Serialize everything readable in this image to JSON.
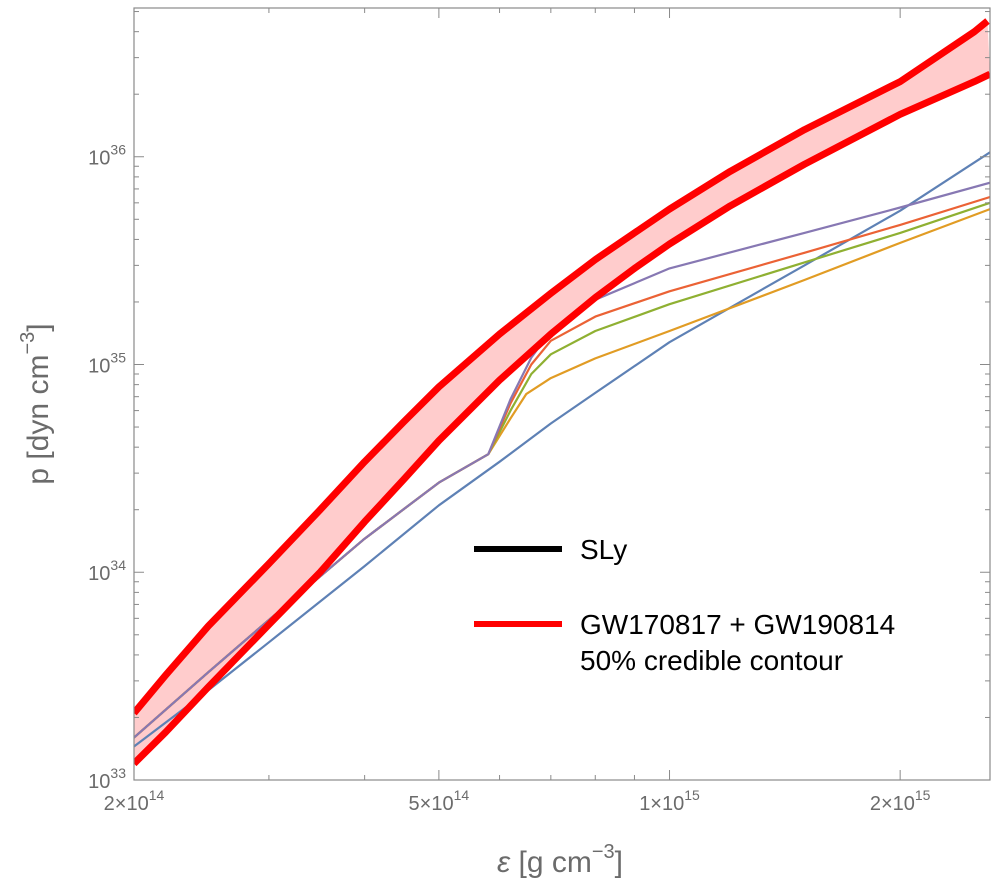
{
  "chart_data": {
    "type": "line",
    "title": "",
    "x_scale": "log",
    "y_scale": "log",
    "xlim": [
      200000000000000.0,
      2620000000000000.0
    ],
    "ylim": [
      1e+33,
      5.2e+36
    ],
    "xlabel": {
      "symbol": "ε",
      "text": " [g cm",
      "exp": "−3",
      "close": "]"
    },
    "ylabel": {
      "text": "p [dyn cm",
      "exp": "−3",
      "close": "]"
    },
    "x_ticks": [
      {
        "value": 200000000000000.0,
        "mant": "2×10",
        "exp": "14"
      },
      {
        "value": 500000000000000.0,
        "mant": "5×10",
        "exp": "14"
      },
      {
        "value": 1000000000000000.0,
        "mant": "1×10",
        "exp": "15"
      },
      {
        "value": 2000000000000000.0,
        "mant": "2×10",
        "exp": "15"
      }
    ],
    "y_ticks": [
      {
        "value": 1e+33,
        "mant": "10",
        "exp": "33"
      },
      {
        "value": 1e+34,
        "mant": "10",
        "exp": "34"
      },
      {
        "value": 1e+35,
        "mant": "10",
        "exp": "35"
      },
      {
        "value": 1e+36,
        "mant": "10",
        "exp": "36"
      }
    ],
    "band": {
      "label_line1": "GW170817 + GW190814",
      "label_line2": "50% credible contour",
      "color": "#ff0000",
      "fill": "#ffcccc",
      "upper": [
        [
          200000000000000.0,
          2.1e+33
        ],
        [
          220000000000000.0,
          3.2e+33
        ],
        [
          250000000000000.0,
          5.5e+33
        ],
        [
          300000000000000.0,
          1.1e+34
        ],
        [
          350000000000000.0,
          2e+34
        ],
        [
          400000000000000.0,
          3.4e+34
        ],
        [
          450000000000000.0,
          5.3e+34
        ],
        [
          500000000000000.0,
          7.8e+34
        ],
        [
          600000000000000.0,
          1.4e+35
        ],
        [
          700000000000000.0,
          2.2e+35
        ],
        [
          800000000000000.0,
          3.2e+35
        ],
        [
          900000000000000.0,
          4.3e+35
        ],
        [
          1000000000000000.0,
          5.6e+35
        ],
        [
          1200000000000000.0,
          8.5e+35
        ],
        [
          1500000000000000.0,
          1.35e+36
        ],
        [
          2000000000000000.0,
          2.3e+36
        ],
        [
          2500000000000000.0,
          4e+36
        ],
        [
          2600000000000000.0,
          4.5e+36
        ]
      ],
      "lower": [
        [
          200000000000000.0,
          1.2e+33
        ],
        [
          220000000000000.0,
          1.7e+33
        ],
        [
          250000000000000.0,
          2.8e+33
        ],
        [
          300000000000000.0,
          5.6e+33
        ],
        [
          350000000000000.0,
          1e+34
        ],
        [
          400000000000000.0,
          1.75e+34
        ],
        [
          450000000000000.0,
          2.8e+34
        ],
        [
          500000000000000.0,
          4.3e+34
        ],
        [
          600000000000000.0,
          8.4e+34
        ],
        [
          700000000000000.0,
          1.4e+35
        ],
        [
          800000000000000.0,
          2.1e+35
        ],
        [
          900000000000000.0,
          2.9e+35
        ],
        [
          1000000000000000.0,
          3.8e+35
        ],
        [
          1200000000000000.0,
          5.8e+35
        ],
        [
          1500000000000000.0,
          9.2e+35
        ],
        [
          2000000000000000.0,
          1.6e+36
        ],
        [
          2500000000000000.0,
          2.3e+36
        ],
        [
          2620000000000000.0,
          2.5e+36
        ]
      ]
    },
    "legend": [
      {
        "label": "SLy",
        "color": "#000000"
      }
    ],
    "series": [
      {
        "color": "#5e81b5",
        "points": [
          [
            200000000000000.0,
            1.45e+33
          ],
          [
            250000000000000.0,
            2.7e+33
          ],
          [
            300000000000000.0,
            4.6e+33
          ],
          [
            400000000000000.0,
            1.07e+34
          ],
          [
            500000000000000.0,
            2.1e+34
          ],
          [
            600000000000000.0,
            3.4e+34
          ],
          [
            700000000000000.0,
            5.2e+34
          ],
          [
            800000000000000.0,
            7.3e+34
          ],
          [
            1000000000000000.0,
            1.28e+35
          ],
          [
            1500000000000000.0,
            3e+35
          ],
          [
            2000000000000000.0,
            5.5e+35
          ],
          [
            2620000000000000.0,
            1.05e+36
          ]
        ]
      },
      {
        "color": "#e19c24",
        "points": [
          [
            200000000000000.0,
            1.6e+33
          ],
          [
            250000000000000.0,
            3.3e+33
          ],
          [
            300000000000000.0,
            5.9e+33
          ],
          [
            400000000000000.0,
            1.45e+34
          ],
          [
            500000000000000.0,
            2.7e+34
          ],
          [
            580000000000000.0,
            3.7e+34
          ],
          [
            620000000000000.0,
            5.5e+34
          ],
          [
            650000000000000.0,
            7.2e+34
          ],
          [
            700000000000000.0,
            8.6e+34
          ],
          [
            800000000000000.0,
            1.07e+35
          ],
          [
            1000000000000000.0,
            1.45e+35
          ],
          [
            1500000000000000.0,
            2.55e+35
          ],
          [
            2000000000000000.0,
            3.85e+35
          ],
          [
            2620000000000000.0,
            5.6e+35
          ]
        ]
      },
      {
        "color": "#8fb032",
        "points": [
          [
            200000000000000.0,
            1.6e+33
          ],
          [
            250000000000000.0,
            3.3e+33
          ],
          [
            300000000000000.0,
            5.9e+33
          ],
          [
            400000000000000.0,
            1.45e+34
          ],
          [
            500000000000000.0,
            2.7e+34
          ],
          [
            580000000000000.0,
            3.7e+34
          ],
          [
            620000000000000.0,
            6e+34
          ],
          [
            660000000000000.0,
            9e+34
          ],
          [
            700000000000000.0,
            1.12e+35
          ],
          [
            800000000000000.0,
            1.45e+35
          ],
          [
            1000000000000000.0,
            1.95e+35
          ],
          [
            1500000000000000.0,
            3.1e+35
          ],
          [
            2000000000000000.0,
            4.3e+35
          ],
          [
            2620000000000000.0,
            6e+35
          ]
        ]
      },
      {
        "color": "#eb6235",
        "points": [
          [
            200000000000000.0,
            1.6e+33
          ],
          [
            250000000000000.0,
            3.3e+33
          ],
          [
            300000000000000.0,
            5.9e+33
          ],
          [
            400000000000000.0,
            1.45e+34
          ],
          [
            500000000000000.0,
            2.7e+34
          ],
          [
            580000000000000.0,
            3.7e+34
          ],
          [
            620000000000000.0,
            6.5e+34
          ],
          [
            660000000000000.0,
            1e+35
          ],
          [
            700000000000000.0,
            1.3e+35
          ],
          [
            800000000000000.0,
            1.7e+35
          ],
          [
            1000000000000000.0,
            2.25e+35
          ],
          [
            1500000000000000.0,
            3.45e+35
          ],
          [
            2000000000000000.0,
            4.7e+35
          ],
          [
            2620000000000000.0,
            6.4e+35
          ]
        ]
      },
      {
        "color": "#8778b3",
        "points": [
          [
            200000000000000.0,
            1.6e+33
          ],
          [
            250000000000000.0,
            3.3e+33
          ],
          [
            300000000000000.0,
            5.9e+33
          ],
          [
            400000000000000.0,
            1.45e+34
          ],
          [
            500000000000000.0,
            2.7e+34
          ],
          [
            580000000000000.0,
            3.7e+34
          ],
          [
            620000000000000.0,
            6.8e+34
          ],
          [
            660000000000000.0,
            1.08e+35
          ],
          [
            700000000000000.0,
            1.45e+35
          ],
          [
            800000000000000.0,
            2.05e+35
          ],
          [
            1000000000000000.0,
            2.9e+35
          ],
          [
            1500000000000000.0,
            4.3e+35
          ],
          [
            2000000000000000.0,
            5.7e+35
          ],
          [
            2620000000000000.0,
            7.5e+35
          ]
        ]
      }
    ]
  }
}
